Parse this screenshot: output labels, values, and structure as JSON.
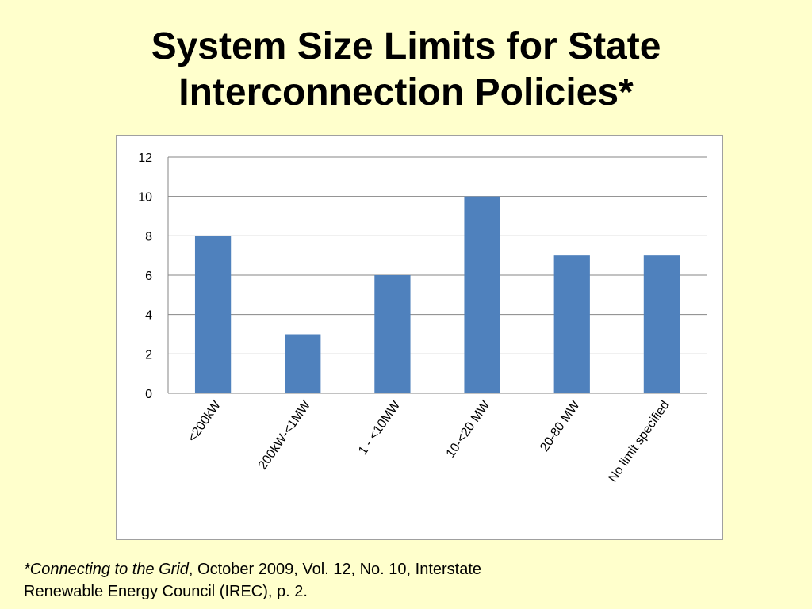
{
  "slide": {
    "title_line1": "System Size Limits for State",
    "title_line2": "Interconnection Policies*"
  },
  "footnote": {
    "source_italic": "*Connecting to the Grid",
    "comma": ",",
    "details_line1": " October 2009, Vol. 12, No. 10, Interstate",
    "details_line2": "Renewable Energy Council (IREC), p. 2."
  },
  "colors": {
    "background": "#FFFFCC",
    "bar": "#4F81BD",
    "gridline": "#868686",
    "tick_text": "#000000"
  },
  "chart_data": {
    "type": "bar",
    "title": "",
    "xlabel": "",
    "ylabel": "",
    "categories": [
      "<200kW",
      "200kW-<1MW",
      "1 - <10MW",
      "10-<20 MW",
      "20-80 MW",
      "No limit specified"
    ],
    "values": [
      8,
      3,
      6,
      10,
      7,
      7
    ],
    "ylim": [
      0,
      12
    ],
    "yticks": [
      0,
      2,
      4,
      6,
      8,
      10,
      12
    ],
    "grid": true,
    "legend": "none"
  }
}
